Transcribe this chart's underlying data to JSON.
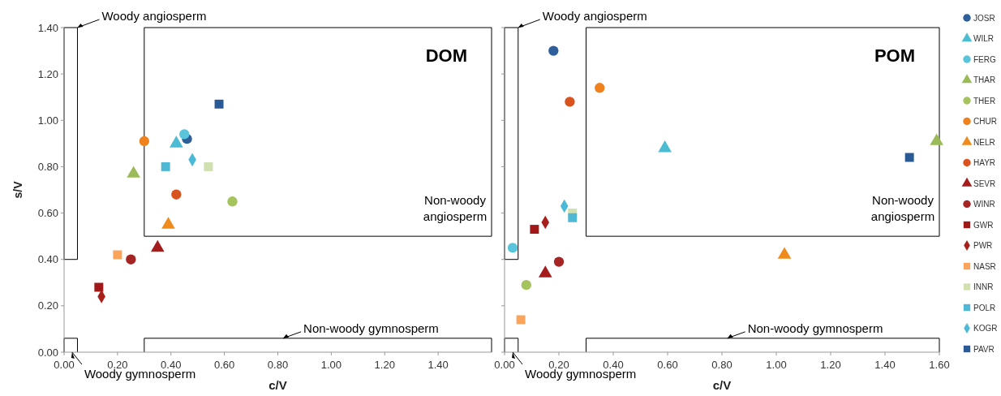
{
  "chart_data": [
    {
      "type": "scatter",
      "title": "DOM",
      "xlabel": "c/V",
      "ylabel": "s/V",
      "xlim": [
        0,
        1.6
      ],
      "ylim": [
        0,
        1.4
      ],
      "xticks": [
        {
          "value": 0,
          "label": "0.00"
        },
        {
          "value": 0.2,
          "label": "0.20"
        },
        {
          "value": 0.4,
          "label": "0.40"
        },
        {
          "value": 0.6,
          "label": "0.60"
        },
        {
          "value": 0.8,
          "label": "0.80"
        },
        {
          "value": 1,
          "label": "1.00"
        },
        {
          "value": 1.2,
          "label": "1.20"
        },
        {
          "value": 1.4,
          "label": "1.40"
        }
      ],
      "yticks": [
        {
          "value": 0,
          "label": "0.00"
        },
        {
          "value": 0.2,
          "label": "0.20"
        },
        {
          "value": 0.4,
          "label": "0.40"
        },
        {
          "value": 0.6,
          "label": "0.60"
        },
        {
          "value": 0.8,
          "label": "0.80"
        },
        {
          "value": 1,
          "label": "1.00"
        },
        {
          "value": 1.2,
          "label": "1.20"
        },
        {
          "value": 1.4,
          "label": "1.40"
        }
      ],
      "grid": false,
      "legend": "right",
      "annotations": [
        "Woody angiosperm",
        "Non-woody angiosperm",
        "Non-woody gymnosperm",
        "Woody gymnosperm"
      ],
      "series": [
        {
          "name": "JOSR",
          "color": "#2e5f9a",
          "marker": "circle",
          "x": [
            0.46
          ],
          "values": [
            0.92
          ]
        },
        {
          "name": "WILR",
          "color": "#4bbcd1",
          "marker": "triangle",
          "x": [
            0.42
          ],
          "values": [
            0.9
          ]
        },
        {
          "name": "FERG",
          "color": "#5ac4da",
          "marker": "circle",
          "x": [
            0.45
          ],
          "values": [
            0.94
          ]
        },
        {
          "name": "THAR",
          "color": "#9bbb59",
          "marker": "triangle",
          "x": [
            0.26
          ],
          "values": [
            0.77
          ]
        },
        {
          "name": "THER",
          "color": "#a5c45e",
          "marker": "circle",
          "x": [
            0.63
          ],
          "values": [
            0.65
          ]
        },
        {
          "name": "CHUR",
          "color": "#f0821e",
          "marker": "circle",
          "x": [
            0.3
          ],
          "values": [
            0.91
          ]
        },
        {
          "name": "NELR",
          "color": "#ef8a1c",
          "marker": "triangle",
          "x": [
            0.39
          ],
          "values": [
            0.55
          ]
        },
        {
          "name": "HAYR",
          "color": "#d9531e",
          "marker": "circle",
          "x": [
            0.42
          ],
          "values": [
            0.68
          ]
        },
        {
          "name": "SEVR",
          "color": "#a51c1c",
          "marker": "triangle",
          "x": [
            0.35
          ],
          "values": [
            0.45
          ]
        },
        {
          "name": "WINR",
          "color": "#a52424",
          "marker": "circle",
          "x": [
            0.25
          ],
          "values": [
            0.4
          ]
        },
        {
          "name": "GWR",
          "color": "#a01818",
          "marker": "square",
          "x": [
            0.13
          ],
          "values": [
            0.28
          ]
        },
        {
          "name": "PWR",
          "color": "#a8201c",
          "marker": "diamond",
          "x": [
            0.14
          ],
          "values": [
            0.24
          ]
        },
        {
          "name": "NASR",
          "color": "#f9a45a",
          "marker": "square",
          "x": [
            0.2
          ],
          "values": [
            0.42
          ]
        },
        {
          "name": "INNR",
          "color": "#d0e0b0",
          "marker": "square",
          "x": [
            0.54
          ],
          "values": [
            0.8
          ]
        },
        {
          "name": "POLR",
          "color": "#4fb8d4",
          "marker": "square",
          "x": [
            0.38
          ],
          "values": [
            0.8
          ]
        },
        {
          "name": "KOGR",
          "color": "#4cbad6",
          "marker": "diamond",
          "x": [
            0.48
          ],
          "values": [
            0.83
          ]
        },
        {
          "name": "PAVR",
          "color": "#2a5a95",
          "marker": "square",
          "x": [
            0.58
          ],
          "values": [
            1.07
          ]
        }
      ]
    },
    {
      "type": "scatter",
      "title": "POM",
      "xlabel": "c/V",
      "xlim": [
        0,
        1.6
      ],
      "ylim": [
        0,
        1.4
      ],
      "xticks": [
        {
          "value": 0,
          "label": "0.00"
        },
        {
          "value": 0.2,
          "label": "0.20"
        },
        {
          "value": 0.4,
          "label": "0.40"
        },
        {
          "value": 0.6,
          "label": "0.60"
        },
        {
          "value": 0.8,
          "label": "0.80"
        },
        {
          "value": 1,
          "label": "1.00"
        },
        {
          "value": 1.2,
          "label": "1.20"
        },
        {
          "value": 1.4,
          "label": "1.40"
        },
        {
          "value": 1.6,
          "label": "1.60"
        }
      ],
      "yticks": [
        0,
        0.2,
        0.4,
        0.6,
        0.8,
        1,
        1.2,
        1.4
      ],
      "tick_labels": "x",
      "grid": false,
      "annotations": [
        "Woody angiosperm",
        "Non-woody angiosperm",
        "Non-woody gymnosperm",
        "Woody gymnosperm"
      ],
      "series": [
        {
          "color": "#2e5f9a",
          "marker": "circle",
          "x": [
            0.18
          ],
          "values": [
            1.3
          ]
        },
        {
          "color": "#4bbcd1",
          "marker": "triangle",
          "x": [
            0.59
          ],
          "values": [
            0.88
          ]
        },
        {
          "color": "#5ac4da",
          "marker": "circle",
          "x": [
            0.03
          ],
          "values": [
            0.45
          ]
        },
        {
          "color": "#9bbb59",
          "marker": "triangle",
          "x": [
            1.59
          ],
          "values": [
            0.91
          ]
        },
        {
          "color": "#a5c45e",
          "marker": "circle",
          "x": [
            0.08
          ],
          "values": [
            0.29
          ]
        },
        {
          "color": "#f0821e",
          "marker": "circle",
          "x": [
            0.35
          ],
          "values": [
            1.14
          ]
        },
        {
          "color": "#ef8a1c",
          "marker": "triangle",
          "x": [
            1.03
          ],
          "values": [
            0.42
          ]
        },
        {
          "color": "#d9531e",
          "marker": "circle",
          "x": [
            0.24
          ],
          "values": [
            1.08
          ]
        },
        {
          "color": "#a51c1c",
          "marker": "triangle",
          "x": [
            0.15
          ],
          "values": [
            0.34
          ]
        },
        {
          "color": "#a52424",
          "marker": "circle",
          "x": [
            0.2
          ],
          "values": [
            0.39
          ]
        },
        {
          "color": "#a01818",
          "marker": "square",
          "x": [
            0.11
          ],
          "values": [
            0.53
          ]
        },
        {
          "color": "#a8201c",
          "marker": "diamond",
          "x": [
            0.15
          ],
          "values": [
            0.56
          ]
        },
        {
          "color": "#f9a45a",
          "marker": "square",
          "x": [
            0.06
          ],
          "values": [
            0.14
          ]
        },
        {
          "color": "#d0e0b0",
          "marker": "square",
          "x": [
            0.25
          ],
          "values": [
            0.6
          ]
        },
        {
          "color": "#4fb8d4",
          "marker": "square",
          "x": [
            0.25
          ],
          "values": [
            0.58
          ]
        },
        {
          "color": "#4cbad6",
          "marker": "diamond",
          "x": [
            0.22
          ],
          "values": [
            0.63
          ]
        },
        {
          "color": "#2a5a95",
          "marker": "square",
          "x": [
            1.49
          ],
          "values": [
            0.84
          ]
        }
      ]
    }
  ]
}
